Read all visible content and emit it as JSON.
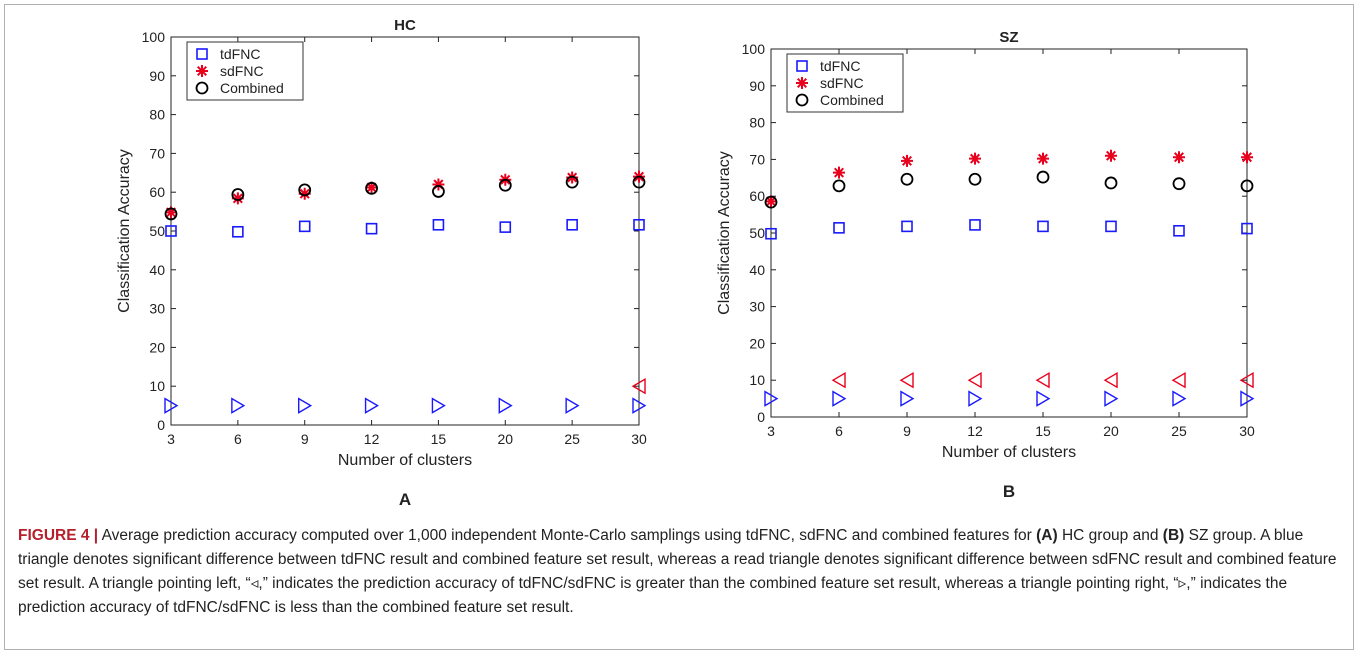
{
  "colors": {
    "tdFNC": "#1a1aff",
    "sdFNC": "#e8001c",
    "combined": "#000000",
    "tri_blue": "#1a1aff",
    "tri_red": "#e8001c"
  },
  "chart_data": [
    {
      "type": "scatter",
      "panel_label": "A",
      "title": "HC",
      "xlabel": "Number of clusters",
      "ylabel": "Classification Accuracy",
      "categories": [
        "3",
        "6",
        "9",
        "12",
        "15",
        "20",
        "25",
        "30"
      ],
      "ylim": [
        0,
        100
      ],
      "yticks": [
        "0",
        "10",
        "20",
        "30",
        "40",
        "50",
        "60",
        "70",
        "80",
        "90",
        "100"
      ],
      "legend_position": "top-left",
      "series": [
        {
          "name": "tdFNC",
          "marker": "square",
          "values": [
            50,
            49.8,
            51.2,
            50.6,
            51.6,
            51,
            51.6,
            51.6
          ]
        },
        {
          "name": "sdFNC",
          "marker": "asterisk",
          "values": [
            54.8,
            58.4,
            59.6,
            61.2,
            62,
            63.2,
            63.8,
            64
          ]
        },
        {
          "name": "Combined",
          "marker": "circle",
          "values": [
            54.4,
            59.4,
            60.6,
            61,
            60.2,
            61.8,
            62.6,
            62.6
          ]
        }
      ],
      "triangles": [
        {
          "category": "3",
          "y": 5,
          "direction": "right",
          "color": "blue"
        },
        {
          "category": "6",
          "y": 5,
          "direction": "right",
          "color": "blue"
        },
        {
          "category": "9",
          "y": 5,
          "direction": "right",
          "color": "blue"
        },
        {
          "category": "12",
          "y": 5,
          "direction": "right",
          "color": "blue"
        },
        {
          "category": "15",
          "y": 5,
          "direction": "right",
          "color": "blue"
        },
        {
          "category": "20",
          "y": 5,
          "direction": "right",
          "color": "blue"
        },
        {
          "category": "25",
          "y": 5,
          "direction": "right",
          "color": "blue"
        },
        {
          "category": "30",
          "y": 5,
          "direction": "right",
          "color": "blue"
        },
        {
          "category": "30",
          "y": 10,
          "direction": "left",
          "color": "red"
        }
      ]
    },
    {
      "type": "scatter",
      "panel_label": "B",
      "title": "SZ",
      "xlabel": "Number of clusters",
      "ylabel": "Classification Accuracy",
      "categories": [
        "3",
        "6",
        "9",
        "12",
        "15",
        "20",
        "25",
        "30"
      ],
      "ylim": [
        0,
        100
      ],
      "yticks": [
        "0",
        "10",
        "20",
        "30",
        "40",
        "50",
        "60",
        "70",
        "80",
        "90",
        "100"
      ],
      "legend_position": "top-left",
      "series": [
        {
          "name": "tdFNC",
          "marker": "square",
          "values": [
            49.8,
            51.4,
            51.8,
            52.2,
            51.8,
            51.8,
            50.6,
            51.2
          ]
        },
        {
          "name": "sdFNC",
          "marker": "asterisk",
          "values": [
            58.6,
            66.4,
            69.6,
            70.2,
            70.2,
            71,
            70.6,
            70.6
          ]
        },
        {
          "name": "Combined",
          "marker": "circle",
          "values": [
            58.4,
            62.8,
            64.6,
            64.6,
            65.2,
            63.6,
            63.4,
            62.8
          ]
        }
      ],
      "triangles": [
        {
          "category": "3",
          "y": 5,
          "direction": "right",
          "color": "blue"
        },
        {
          "category": "6",
          "y": 5,
          "direction": "right",
          "color": "blue"
        },
        {
          "category": "9",
          "y": 5,
          "direction": "right",
          "color": "blue"
        },
        {
          "category": "12",
          "y": 5,
          "direction": "right",
          "color": "blue"
        },
        {
          "category": "15",
          "y": 5,
          "direction": "right",
          "color": "blue"
        },
        {
          "category": "20",
          "y": 5,
          "direction": "right",
          "color": "blue"
        },
        {
          "category": "25",
          "y": 5,
          "direction": "right",
          "color": "blue"
        },
        {
          "category": "30",
          "y": 5,
          "direction": "right",
          "color": "blue"
        },
        {
          "category": "6",
          "y": 10,
          "direction": "left",
          "color": "red"
        },
        {
          "category": "9",
          "y": 10,
          "direction": "left",
          "color": "red"
        },
        {
          "category": "12",
          "y": 10,
          "direction": "left",
          "color": "red"
        },
        {
          "category": "15",
          "y": 10,
          "direction": "left",
          "color": "red"
        },
        {
          "category": "20",
          "y": 10,
          "direction": "left",
          "color": "red"
        },
        {
          "category": "25",
          "y": 10,
          "direction": "left",
          "color": "red"
        },
        {
          "category": "30",
          "y": 10,
          "direction": "left",
          "color": "red"
        }
      ]
    }
  ],
  "caption": {
    "figure_label": "FIGURE 4 |",
    "part1": " Average prediction accuracy computed over 1,000 independent Monte-Carlo samplings using tdFNC, sdFNC and combined features for ",
    "a_label": "(A)",
    "part2": " HC group and ",
    "b_label": "(B)",
    "part3": " SZ group. A blue triangle denotes significant difference between tdFNC result and combined feature set result, whereas a read triangle denotes significant difference between sdFNC result and combined feature set result. A triangle pointing left, “◃,” indicates the prediction accuracy of tdFNC/sdFNC is greater than the combined feature set result, whereas a triangle pointing right, “▹,” indicates the prediction accuracy of tdFNC/sdFNC is less than the combined feature set result."
  }
}
